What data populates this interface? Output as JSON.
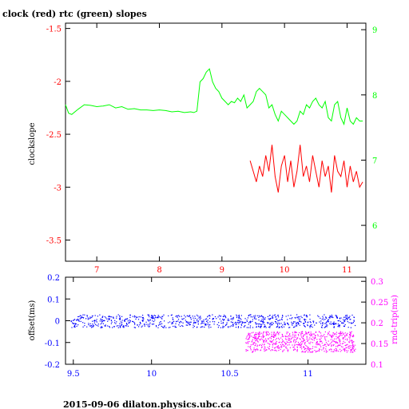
{
  "title": "clock (red) rtc (green) slopes",
  "footer": "2015-09-06  dilaton.physics.ubc.ca",
  "colors": {
    "red": "#ff0000",
    "green": "#00ff00",
    "blue": "#0000ff",
    "magenta": "#ff00ff",
    "axis": "#000000"
  },
  "chart_data": [
    {
      "type": "line",
      "ylabel": "clockslope",
      "xlim": [
        6.5,
        11.3
      ],
      "ylim_left": [
        -3.7,
        -1.45
      ],
      "ylim_right": [
        5.45,
        9.1
      ],
      "x_ticks": [
        7,
        8,
        9,
        10,
        11
      ],
      "y_left_ticks": [
        -1.5,
        -2,
        -2.5,
        -3,
        -3.5
      ],
      "y_left_tick_labels": [
        "-1.5",
        "-2",
        "-2.5",
        "-3",
        "-3.5"
      ],
      "y_right_ticks": [
        9,
        8,
        7,
        6
      ],
      "y_right_tick_labels": [
        "9",
        "8",
        "7",
        "6"
      ],
      "series": [
        {
          "color": "#ff0000",
          "axis": "left",
          "x": [
            9.45,
            9.5,
            9.55,
            9.6,
            9.65,
            9.7,
            9.75,
            9.8,
            9.85,
            9.9,
            9.95,
            10.0,
            10.05,
            10.1,
            10.15,
            10.2,
            10.25,
            10.3,
            10.35,
            10.4,
            10.45,
            10.5,
            10.55,
            10.6,
            10.65,
            10.7,
            10.75,
            10.8,
            10.85,
            10.9,
            10.95,
            11.0,
            11.05,
            11.1,
            11.15,
            11.2,
            11.25
          ],
          "y": [
            -2.75,
            -2.85,
            -2.95,
            -2.8,
            -2.9,
            -2.7,
            -2.85,
            -2.6,
            -2.9,
            -3.05,
            -2.8,
            -2.7,
            -2.95,
            -2.75,
            -3.0,
            -2.85,
            -2.6,
            -2.9,
            -2.8,
            -2.95,
            -2.7,
            -2.85,
            -3.0,
            -2.75,
            -2.9,
            -2.8,
            -3.05,
            -2.7,
            -2.85,
            -2.9,
            -2.75,
            -3.0,
            -2.8,
            -2.95,
            -2.85,
            -3.0,
            -2.95
          ]
        },
        {
          "color": "#00ff00",
          "axis": "right",
          "x": [
            6.5,
            6.55,
            6.6,
            6.7,
            6.8,
            6.9,
            7.0,
            7.1,
            7.2,
            7.3,
            7.4,
            7.5,
            7.6,
            7.7,
            7.8,
            7.9,
            8.0,
            8.1,
            8.2,
            8.3,
            8.4,
            8.5,
            8.55,
            8.6,
            8.65,
            8.7,
            8.75,
            8.8,
            8.85,
            8.9,
            8.95,
            9.0,
            9.05,
            9.1,
            9.15,
            9.2,
            9.25,
            9.3,
            9.35,
            9.4,
            9.45,
            9.5,
            9.55,
            9.6,
            9.65,
            9.7,
            9.75,
            9.8,
            9.85,
            9.9,
            9.95,
            10.0,
            10.05,
            10.1,
            10.15,
            10.2,
            10.25,
            10.3,
            10.35,
            10.4,
            10.45,
            10.5,
            10.55,
            10.6,
            10.65,
            10.7,
            10.75,
            10.8,
            10.85,
            10.9,
            10.95,
            11.0,
            11.05,
            11.1,
            11.15,
            11.2,
            11.25
          ],
          "y": [
            7.85,
            7.72,
            7.7,
            7.78,
            7.85,
            7.84,
            7.82,
            7.83,
            7.85,
            7.8,
            7.82,
            7.78,
            7.79,
            7.77,
            7.77,
            7.76,
            7.77,
            7.76,
            7.74,
            7.75,
            7.73,
            7.74,
            7.73,
            7.75,
            8.2,
            8.25,
            8.35,
            8.4,
            8.2,
            8.1,
            8.05,
            7.95,
            7.9,
            7.85,
            7.9,
            7.88,
            7.95,
            7.9,
            8.0,
            7.8,
            7.85,
            7.9,
            8.05,
            8.1,
            8.05,
            8.0,
            7.8,
            7.85,
            7.7,
            7.6,
            7.75,
            7.7,
            7.65,
            7.6,
            7.55,
            7.6,
            7.75,
            7.7,
            7.85,
            7.8,
            7.9,
            7.95,
            7.85,
            7.8,
            7.9,
            7.65,
            7.6,
            7.85,
            7.9,
            7.65,
            7.55,
            7.8,
            7.6,
            7.55,
            7.65,
            7.6,
            7.6
          ]
        }
      ]
    },
    {
      "type": "scatter",
      "ylabel": "offset(ms)",
      "ylabel_right": "rnd-trip(ms)",
      "xlim": [
        9.45,
        11.37
      ],
      "ylim_left": [
        -0.2,
        0.2
      ],
      "ylim_right": [
        0.1,
        0.31
      ],
      "x_ticks": [
        9.5,
        10,
        10.5,
        11
      ],
      "y_left_ticks": [
        0.2,
        0.1,
        0,
        -0.1,
        -0.2
      ],
      "y_left_tick_labels": [
        "0.2",
        "0.1",
        "0",
        "-0.1",
        "-0.2"
      ],
      "y_right_ticks": [
        0.3,
        0.25,
        0.2,
        0.15,
        0.1
      ],
      "y_right_tick_labels": [
        "0.3",
        "0.25",
        "0.2",
        "0.15",
        "0.1"
      ],
      "series": [
        {
          "color": "#0000ff",
          "axis": "left",
          "x_range": [
            9.48,
            11.3
          ],
          "y_center": 0.0,
          "y_spread": 0.03
        },
        {
          "color": "#ff00ff",
          "axis": "right",
          "x_range": [
            10.6,
            11.3
          ],
          "y_center": 0.155,
          "y_spread": 0.025
        }
      ]
    }
  ]
}
